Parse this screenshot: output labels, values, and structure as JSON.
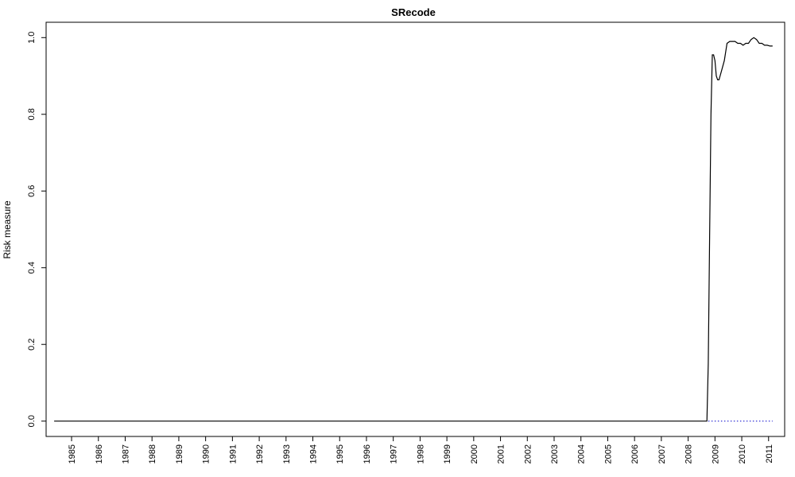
{
  "chart_data": {
    "type": "line",
    "title": "SRecode",
    "xlabel": "",
    "ylabel": "Risk measure",
    "x_ticks": [
      "1985",
      "1986",
      "1987",
      "1988",
      "1989",
      "1990",
      "1991",
      "1992",
      "1993",
      "1994",
      "1995",
      "1996",
      "1997",
      "1998",
      "1999",
      "2000",
      "2001",
      "2002",
      "2003",
      "2004",
      "2005",
      "2006",
      "2007",
      "2008",
      "2009",
      "2010",
      "2011"
    ],
    "xlim": [
      1984.05,
      2011.6
    ],
    "ylim": [
      -0.04,
      1.04
    ],
    "y_ticks": [
      "0.0",
      "0.2",
      "0.4",
      "0.6",
      "0.8",
      "1.0"
    ],
    "grid": false,
    "series": [
      {
        "style": "solid",
        "color": "#000000",
        "x": [
          1984.35,
          2008.7,
          2008.75,
          2008.8,
          2008.85,
          2008.9,
          2008.95,
          2009.0,
          2009.05,
          2009.1,
          2009.15,
          2009.25,
          2009.35,
          2009.45,
          2009.55,
          2009.65,
          2009.75,
          2009.85,
          2009.95,
          2010.05,
          2010.15,
          2010.25,
          2010.35,
          2010.45,
          2010.55,
          2010.65,
          2010.75,
          2010.85,
          2010.95,
          2011.05,
          2011.15
        ],
        "y": [
          0.0,
          0.0,
          0.15,
          0.48,
          0.8,
          0.955,
          0.955,
          0.94,
          0.9,
          0.89,
          0.89,
          0.915,
          0.94,
          0.985,
          0.99,
          0.99,
          0.99,
          0.985,
          0.985,
          0.98,
          0.985,
          0.985,
          0.995,
          1.0,
          0.995,
          0.985,
          0.985,
          0.98,
          0.98,
          0.978,
          0.978
        ]
      },
      {
        "style": "dotted",
        "color": "#1f1fd0",
        "x": [
          2008.75,
          2011.15
        ],
        "y": [
          0.0,
          0.0
        ]
      }
    ]
  }
}
